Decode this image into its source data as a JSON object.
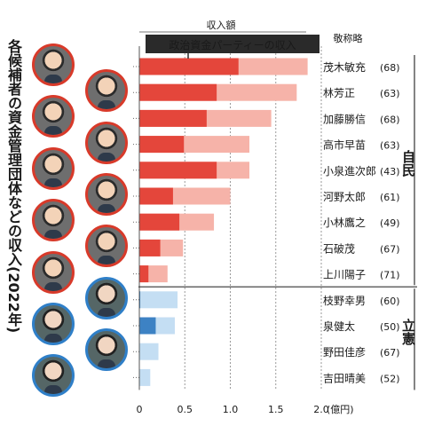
{
  "title_vertical": "各候補者の資金管理団体などの収入(2022年)",
  "top_label": "収入額",
  "honorific_note": "敬称略",
  "chart_data": {
    "type": "bar",
    "orientation": "horizontal",
    "title": "",
    "xlabel": "(億円)",
    "xlim": [
      0,
      2.0
    ],
    "xticks": [
      "0",
      "0.5",
      "1.0",
      "1.5",
      "2.0"
    ],
    "inner_bar_label": "政治資金パーティーの収入",
    "categories": [
      "茂木敏充",
      "林芳正",
      "加藤勝信",
      "高市早苗",
      "小泉進次郎",
      "河野太郎",
      "小林鷹之",
      "石破茂",
      "上川陽子",
      "枝野幸男",
      "泉健太",
      "野田佳彦",
      "吉田晴美"
    ],
    "ages": [
      "(68)",
      "(63)",
      "(68)",
      "(63)",
      "(43)",
      "(61)",
      "(49)",
      "(67)",
      "(71)",
      "(60)",
      "(50)",
      "(67)",
      "(52)"
    ],
    "party_of_row": [
      "自民",
      "自民",
      "自民",
      "自民",
      "自民",
      "自民",
      "自民",
      "自民",
      "自民",
      "立憲",
      "立憲",
      "立憲",
      "立憲"
    ],
    "series": [
      {
        "name": "収入額",
        "values": [
          1.85,
          1.73,
          1.45,
          1.21,
          1.21,
          1.0,
          0.82,
          0.48,
          0.31,
          0.42,
          0.39,
          0.21,
          0.12
        ]
      },
      {
        "name": "政治資金パーティーの収入",
        "values": [
          1.09,
          0.85,
          0.74,
          0.49,
          0.85,
          0.37,
          0.44,
          0.23,
          0.1,
          0.01,
          0.18,
          0.0,
          0.0
        ]
      }
    ],
    "groups": [
      {
        "label": "自民",
        "first": 0,
        "last": 8
      },
      {
        "label": "立憲",
        "first": 9,
        "last": 12
      }
    ],
    "colors": {
      "ldp_total": "#f6b3a9",
      "ldp_party": "#e4463b",
      "cdp_total": "#c4def3",
      "cdp_party": "#3d82c4",
      "ldp_ring": "#d83a2a",
      "cdp_ring": "#2f7fc8"
    }
  }
}
